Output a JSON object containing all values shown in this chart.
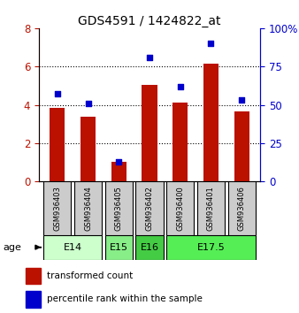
{
  "title": "GDS4591 / 1424822_at",
  "samples": [
    "GSM936403",
    "GSM936404",
    "GSM936405",
    "GSM936402",
    "GSM936400",
    "GSM936401",
    "GSM936406"
  ],
  "bar_values": [
    3.85,
    3.4,
    1.05,
    5.05,
    4.1,
    6.15,
    3.65
  ],
  "dot_values": [
    57,
    51,
    13,
    81,
    62,
    90,
    53
  ],
  "bar_color": "#bb1100",
  "dot_color": "#0000cc",
  "ylim_left": [
    0,
    8
  ],
  "ylim_right": [
    0,
    100
  ],
  "yticks_left": [
    0,
    2,
    4,
    6,
    8
  ],
  "yticks_right": [
    0,
    25,
    50,
    75,
    100
  ],
  "yticklabels_right": [
    "0",
    "25",
    "50",
    "75",
    "100%"
  ],
  "age_groups": [
    {
      "label": "E14",
      "start": 0,
      "end": 1,
      "color": "#ccffcc"
    },
    {
      "label": "E15",
      "start": 2,
      "end": 2,
      "color": "#88ee88"
    },
    {
      "label": "E16",
      "start": 3,
      "end": 3,
      "color": "#55dd55"
    },
    {
      "label": "E17.5",
      "start": 4,
      "end": 6,
      "color": "#44cc44"
    }
  ],
  "legend_bar_label": "transformed count",
  "legend_dot_label": "percentile rank within the sample",
  "background_color": "#ffffff",
  "sample_box_color": "#cccccc"
}
